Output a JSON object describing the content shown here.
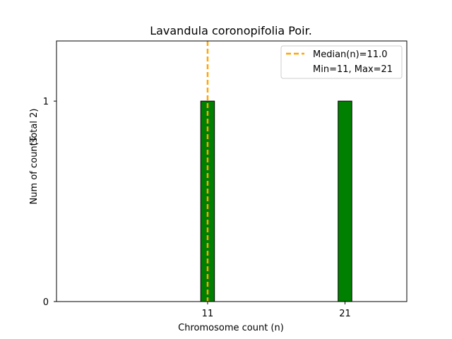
{
  "chart_data": {
    "type": "bar",
    "title": "Lavandula coronopifolia Poir.",
    "xlabel": "Chromosome count (n)",
    "ylabel": "Num of counts",
    "ylabel_total": "(Total 2)",
    "x": [
      11,
      21
    ],
    "values": [
      1,
      1
    ],
    "xticks": [
      "11",
      "21"
    ],
    "yticks": [
      "0",
      "1"
    ],
    "xlim": [
      0,
      25.5
    ],
    "ylim": [
      0,
      1.3
    ],
    "bar_color": "#008000",
    "bar_edge_color": "#000000",
    "median": 11.0,
    "median_color": "#FFA500",
    "legend": {
      "placement": "top-right",
      "entries": [
        "Median(n)=11.0",
        "Min=11, Max=21"
      ]
    },
    "grid": false
  }
}
